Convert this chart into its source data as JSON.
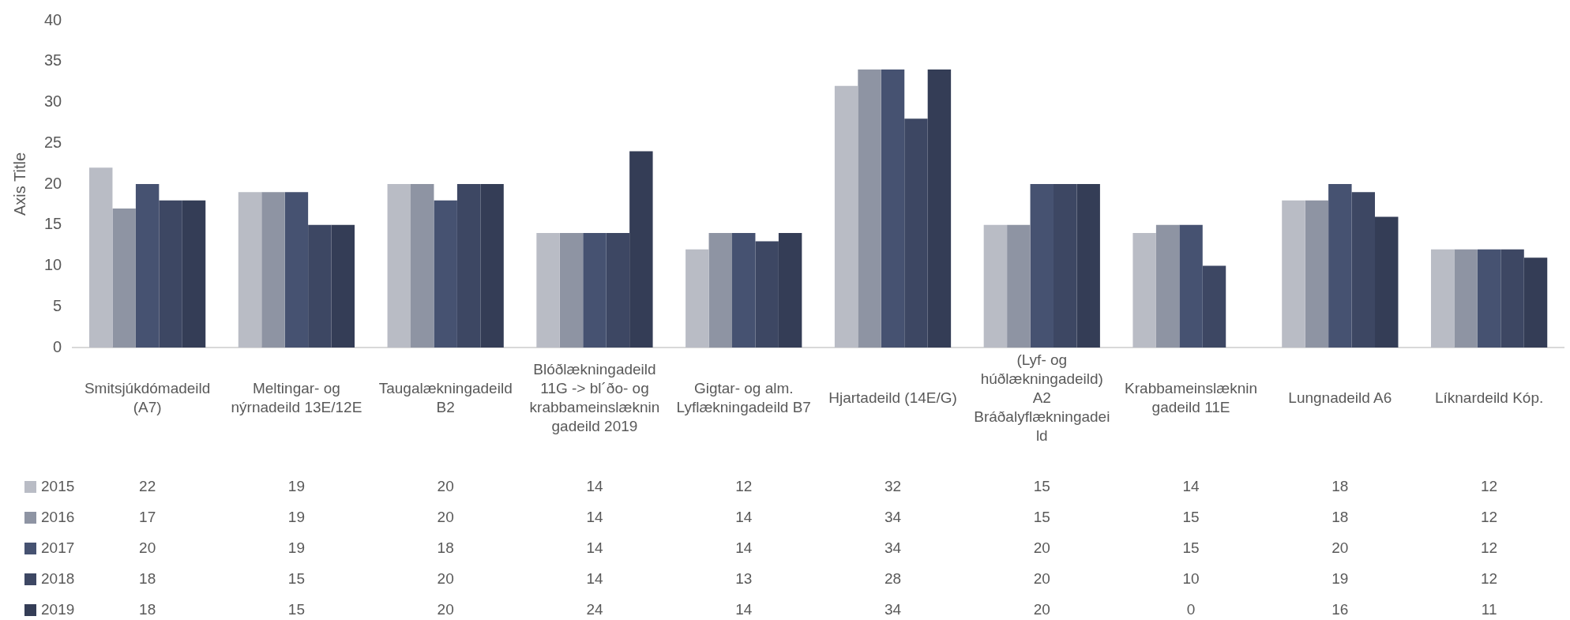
{
  "chart_data": {
    "type": "bar",
    "ylabel": "Axis Title",
    "categories": [
      "Smitsjúkdómadeild (A7)",
      "Meltingar- og nýrnadeild 13E/12E",
      "Taugalækningadeild B2",
      "Blóðlækningadeild 11G -> bl´ðo- og krabbameinslækningadeild 2019",
      "Gigtar- og alm. Lyflækningadeild B7",
      "Hjartadeild (14E/G)",
      "(Lyf- og húðlækningadeild) A2 Bráðalyflækningadeild",
      "Krabbameinslækningadeild 11E",
      "Lungnadeild A6",
      "Líknardeild Kóp."
    ],
    "series": [
      {
        "name": "2015",
        "color": "#b9bcc5",
        "values": [
          22,
          19,
          20,
          14,
          12,
          32,
          15,
          14,
          18,
          12
        ]
      },
      {
        "name": "2016",
        "color": "#8e94a3",
        "values": [
          17,
          19,
          20,
          14,
          14,
          34,
          15,
          15,
          18,
          12
        ]
      },
      {
        "name": "2017",
        "color": "#465271",
        "values": [
          20,
          19,
          18,
          14,
          14,
          34,
          20,
          15,
          20,
          12
        ]
      },
      {
        "name": "2018",
        "color": "#3d4763",
        "values": [
          18,
          15,
          20,
          14,
          13,
          28,
          20,
          10,
          19,
          12
        ]
      },
      {
        "name": "2019",
        "color": "#343d56",
        "values": [
          18,
          15,
          20,
          24,
          14,
          34,
          20,
          0,
          16,
          11
        ]
      }
    ],
    "ylim": [
      0,
      40
    ],
    "yticks": [
      0,
      5,
      10,
      15,
      20,
      25,
      30,
      35,
      40
    ],
    "grid": false,
    "data_labels": true,
    "legend": "bottom"
  }
}
